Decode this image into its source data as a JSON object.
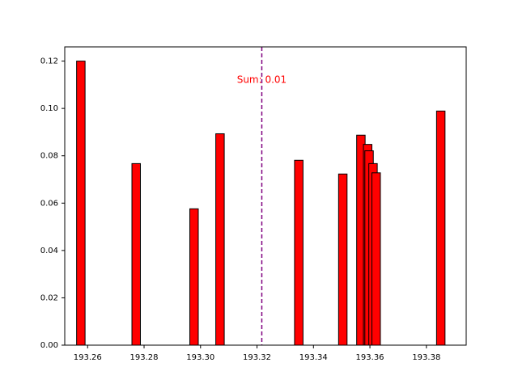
{
  "chart_data": {
    "type": "bar",
    "bar_width": 0.003,
    "bars": [
      {
        "x": 193.2576,
        "value": 0.12
      },
      {
        "x": 193.2772,
        "value": 0.0767
      },
      {
        "x": 193.2977,
        "value": 0.0576
      },
      {
        "x": 193.3069,
        "value": 0.0893
      },
      {
        "x": 193.3348,
        "value": 0.0781
      },
      {
        "x": 193.3504,
        "value": 0.0723
      },
      {
        "x": 193.3568,
        "value": 0.0887
      },
      {
        "x": 193.3592,
        "value": 0.0848
      },
      {
        "x": 193.3597,
        "value": 0.0821
      },
      {
        "x": 193.3611,
        "value": 0.0767
      },
      {
        "x": 193.3622,
        "value": 0.0728
      },
      {
        "x": 193.3851,
        "value": 0.0989
      }
    ],
    "xlim": [
      193.2519,
      193.3941
    ],
    "ylim": [
      0,
      0.126
    ],
    "xticks": [
      "193.26",
      "193.28",
      "193.30",
      "193.32",
      "193.34",
      "193.36",
      "193.38"
    ],
    "yticks": [
      "0.00",
      "0.02",
      "0.04",
      "0.06",
      "0.08",
      "0.10",
      "0.12"
    ],
    "vline": {
      "x": 193.3217
    },
    "annotation": {
      "text": "Sum: 0.01",
      "x": 193.3217,
      "y": 0.112
    },
    "colors": {
      "bar": "#ff0000",
      "edge": "#000000",
      "vline": "#800080",
      "annotation": "#ff0000"
    },
    "title": "",
    "xlabel": "",
    "ylabel": "",
    "grid": false,
    "legend": false
  }
}
